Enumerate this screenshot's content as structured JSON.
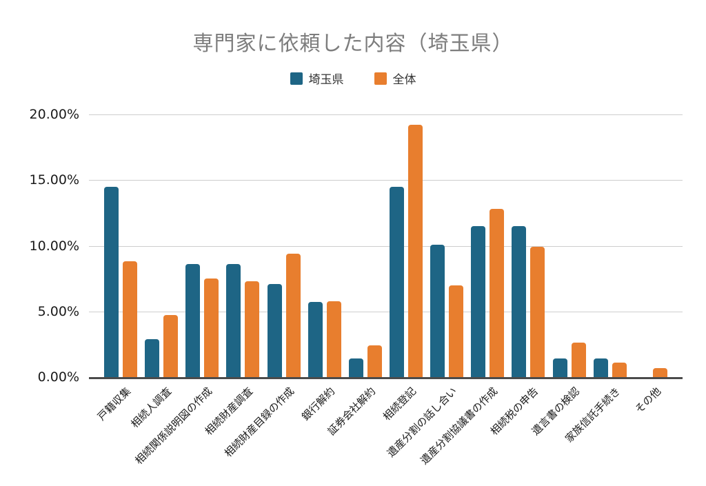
{
  "chart_data": {
    "type": "bar",
    "title": "専門家に依頼した内容（埼玉県）",
    "categories": [
      "戸籍収集",
      "相続人調査",
      "相続関係説明図の作成",
      "相続財産調査",
      "相続財産目録の作成",
      "銀行解約",
      "証券会社解約",
      "相続登記",
      "遺産分割の話し合い",
      "遺産分割協議書の作成",
      "相続税の申告",
      "遺言書の検認",
      "家族信託手続き",
      "その他"
    ],
    "series": [
      {
        "name": "埼玉県",
        "color": "#1e6585",
        "values": [
          14.5,
          2.9,
          8.6,
          8.6,
          7.1,
          5.7,
          1.4,
          14.5,
          10.1,
          11.5,
          11.5,
          1.4,
          1.4,
          0
        ]
      },
      {
        "name": "全体",
        "color": "#e87e2e",
        "values": [
          8.8,
          4.7,
          7.5,
          7.3,
          9.4,
          5.8,
          2.4,
          19.2,
          7.0,
          12.8,
          9.9,
          2.6,
          1.1,
          0.7
        ]
      }
    ],
    "xlabel": "",
    "ylabel": "",
    "ylim": [
      0,
      20
    ],
    "yticks": [
      {
        "label": "0.00%",
        "value": 0
      },
      {
        "label": "5.00%",
        "value": 5
      },
      {
        "label": "10.00%",
        "value": 10
      },
      {
        "label": "15.00%",
        "value": 15
      },
      {
        "label": "20.00%",
        "value": 20
      }
    ],
    "grid": true,
    "legend_position": "top"
  },
  "style": {
    "title_color": "#7d7d7d",
    "axis_text_color": "#1a1a1a",
    "grid_color": "#cdcdcd",
    "axis_line_color": "#4b4b4b",
    "background": "#ffffff"
  }
}
